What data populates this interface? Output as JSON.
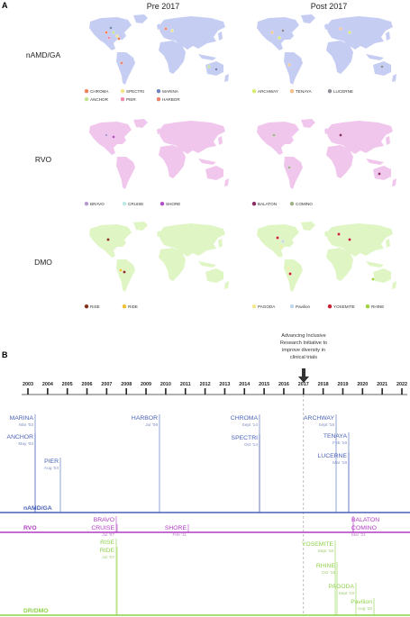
{
  "panel_a": {
    "label": "A",
    "col_titles": [
      "Pre 2017",
      "Post 2017"
    ],
    "rows": [
      {
        "name": "nAMD/GA",
        "pre": {
          "legend": [
            {
              "label": "CHROMA",
              "color": "#f08060"
            },
            {
              "label": "SPECTRI",
              "color": "#f3e58a"
            },
            {
              "label": "MARINA",
              "color": "#6f84b8"
            },
            {
              "label": "ANCHOR",
              "color": "#bfe28a"
            },
            {
              "label": "PIER",
              "color": "#f08aa6"
            },
            {
              "label": "HARBOR",
              "color": "#e8806a"
            }
          ]
        },
        "post": {
          "legend": [
            {
              "label": "ARCHWAY",
              "color": "#d8ec6a"
            },
            {
              "label": "TENAYA",
              "color": "#f5c08a"
            },
            {
              "label": "LUCERNE",
              "color": "#8c8c96"
            }
          ]
        }
      },
      {
        "name": "RVO",
        "pre": {
          "legend": [
            {
              "label": "BRAVO",
              "color": "#b49ad0"
            },
            {
              "label": "CRUISE",
              "color": "#bdeae6"
            },
            {
              "label": "SHORE",
              "color": "#b050c8"
            }
          ]
        },
        "post": {
          "legend": [
            {
              "label": "BALATON",
              "color": "#8a2e64"
            },
            {
              "label": "COMINO",
              "color": "#a0b088"
            }
          ]
        }
      },
      {
        "name": "DMO",
        "pre": {
          "legend": [
            {
              "label": "RISE",
              "color": "#8a3020"
            },
            {
              "label": "RIDE",
              "color": "#f0c030"
            }
          ]
        },
        "post": {
          "legend": [
            {
              "label": "PAGODA",
              "color": "#f2e890"
            },
            {
              "label": "Pavilion",
              "color": "#c0d4ec"
            },
            {
              "label": "YOSEMITE",
              "color": "#c81e32"
            },
            {
              "label": "RHINE",
              "color": "#9ed23a"
            }
          ]
        }
      }
    ]
  },
  "panel_b": {
    "label": "B",
    "annotation": [
      "Advancing Inclusive",
      "Research Initiative to",
      "improve diversity in",
      "clinical trials"
    ],
    "years": [
      "2003",
      "2004",
      "2005",
      "2006",
      "2007",
      "2008",
      "2009",
      "2010",
      "2011",
      "2012",
      "2013",
      "2014",
      "2015",
      "2016",
      "2017",
      "2018",
      "2019",
      "2020",
      "2021",
      "2022"
    ],
    "tracks": [
      {
        "label": "nAMD/GA",
        "color": "#4a62b8",
        "date_color": "#7f8fc0"
      },
      {
        "label": "RVO",
        "color": "#b23cc4",
        "date_color": "#c07ccc"
      },
      {
        "label": "DR/DMO",
        "color": "#8fd24a",
        "date_color": "#9fcc70"
      }
    ],
    "events": [
      {
        "name": "MARINA",
        "date": "Mar '03"
      },
      {
        "name": "ANCHOR",
        "date": "May '03"
      },
      {
        "name": "PIER",
        "date": "Aug '04"
      },
      {
        "name": "HARBOR",
        "date": "Jul '09"
      },
      {
        "name": "CHROMA",
        "date": "Sept '14"
      },
      {
        "name": "SPECTRI",
        "date": "Oct '14"
      },
      {
        "name": "ARCHWAY",
        "date": "Sept '18"
      },
      {
        "name": "TENAYA",
        "date": "Feb '19"
      },
      {
        "name": "LUCERNE",
        "date": "Mar '19"
      },
      {
        "name": "BRAVO",
        "date": ""
      },
      {
        "name": "CRUISE",
        "date": "Jul '07"
      },
      {
        "name": "SHORE",
        "date": "Feb '11"
      },
      {
        "name": "BALATON",
        "date": ""
      },
      {
        "name": "COMINO",
        "date": "Mar '21"
      },
      {
        "name": "RISE",
        "date": ""
      },
      {
        "name": "RIDE",
        "date": "Jul '07"
      },
      {
        "name": "YOSEMITE",
        "date": "Sept '18"
      },
      {
        "name": "RHINE",
        "date": "Oct '18"
      },
      {
        "name": "PAGODA",
        "date": "Sept '19"
      },
      {
        "name": "Pavilion",
        "date": "Aug '20"
      }
    ]
  }
}
